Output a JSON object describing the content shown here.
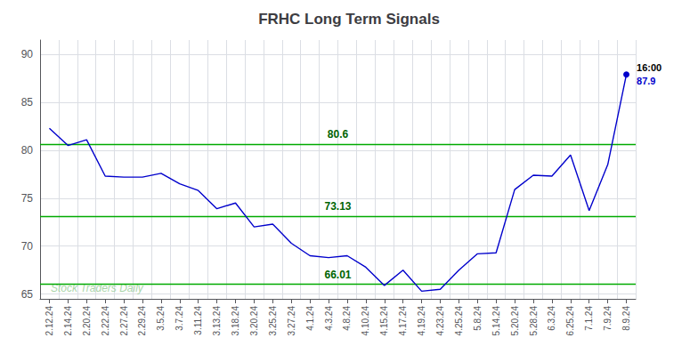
{
  "chart_data": {
    "type": "line",
    "title": "FRHC Long Term Signals",
    "categories": [
      "2.12.24",
      "2.14.24",
      "2.20.24",
      "2.22.24",
      "2.27.24",
      "2.29.24",
      "3.5.24",
      "3.7.24",
      "3.11.24",
      "3.13.24",
      "3.18.24",
      "3.20.24",
      "3.25.24",
      "3.27.24",
      "4.1.24",
      "4.3.24",
      "4.8.24",
      "4.10.24",
      "4.15.24",
      "4.17.24",
      "4.19.24",
      "4.23.24",
      "4.25.24",
      "5.8.24",
      "5.14.24",
      "5.20.24",
      "5.28.24",
      "6.3.24",
      "6.25.24",
      "7.1.24",
      "7.9.24",
      "8.9.24"
    ],
    "values": [
      82.3,
      80.5,
      81.1,
      77.3,
      77.2,
      77.2,
      77.6,
      76.5,
      75.8,
      73.9,
      74.5,
      72.0,
      72.3,
      70.3,
      69.0,
      68.8,
      69.0,
      67.8,
      65.9,
      67.5,
      65.3,
      65.5,
      67.5,
      69.2,
      69.3,
      75.9,
      77.4,
      77.3,
      79.5,
      73.7,
      78.5,
      87.9
    ],
    "color": "#0000cc",
    "hlines": [
      {
        "y": 80.6,
        "label": "80.6",
        "color": "#00aa00"
      },
      {
        "y": 73.13,
        "label": "73.13",
        "color": "#00aa00"
      },
      {
        "y": 66.01,
        "label": "66.01",
        "color": "#00aa00"
      }
    ],
    "annotations": [
      {
        "text": "16:00",
        "color": "#000000"
      },
      {
        "text": "87.9",
        "color": "#0000cc"
      },
      {
        "text": "Stock Traders Daily",
        "color": "#99cc99"
      }
    ],
    "ylim": [
      64.5,
      91.5
    ],
    "yticks": [
      65,
      70,
      75,
      80,
      85,
      90
    ],
    "grid": true
  }
}
